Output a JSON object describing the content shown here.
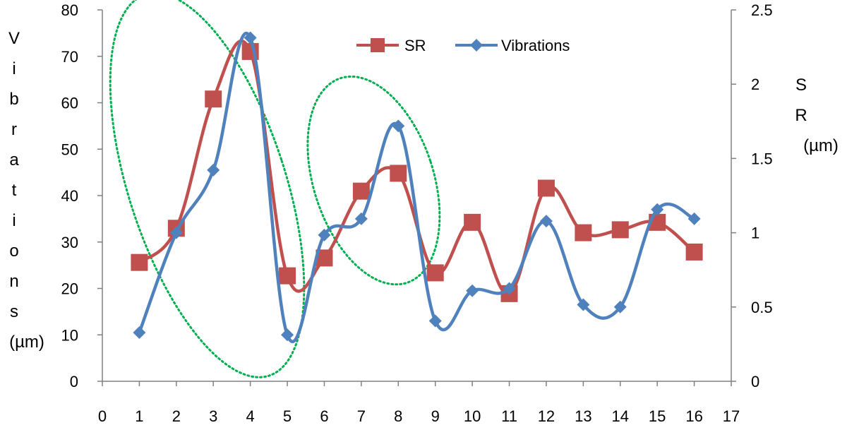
{
  "chart_data": {
    "type": "line",
    "x": [
      1,
      2,
      3,
      4,
      5,
      6,
      7,
      8,
      9,
      10,
      11,
      12,
      13,
      14,
      15,
      16
    ],
    "xlim": [
      0,
      17
    ],
    "x_ticks": [
      "0",
      "1",
      "2",
      "3",
      "4",
      "5",
      "6",
      "7",
      "8",
      "9",
      "10",
      "11",
      "12",
      "13",
      "14",
      "15",
      "16",
      "17"
    ],
    "y_left": {
      "label": "Vibrations (µm)",
      "label_letters": [
        "V",
        "i",
        "b",
        "r",
        "a",
        "t",
        "i",
        "o",
        "n",
        "s",
        "(µm)"
      ],
      "ylim": [
        0,
        80
      ],
      "ticks": [
        "0",
        "10",
        "20",
        "30",
        "40",
        "50",
        "60",
        "70",
        "80"
      ]
    },
    "y_right": {
      "label": "SR (µm)",
      "label_lines": [
        "S",
        "R",
        "(µm)"
      ],
      "ylim": [
        0,
        2.5
      ],
      "ticks": [
        "0",
        "0.5",
        "1",
        "1.5",
        "2",
        "2.5"
      ]
    },
    "series": [
      {
        "name": "SR",
        "axis": "right",
        "marker": "square",
        "color": "#c0504d",
        "values": [
          0.8,
          1.03,
          1.9,
          2.22,
          0.71,
          0.83,
          1.28,
          1.4,
          0.73,
          1.07,
          0.59,
          1.3,
          1.0,
          1.02,
          1.07,
          0.87
        ]
      },
      {
        "name": "Vibrations",
        "axis": "left",
        "marker": "diamond",
        "color": "#4f81bd",
        "values": [
          10.5,
          32,
          45.5,
          74,
          10,
          31.5,
          35,
          55,
          13,
          19.5,
          20,
          34.5,
          16.5,
          16,
          37,
          35
        ]
      }
    ],
    "legend": {
      "position": "top-center"
    },
    "annotations": [
      {
        "type": "dotted-ellipse",
        "color": "#00b050",
        "around_x": [
          1,
          4
        ]
      },
      {
        "type": "dotted-ellipse",
        "color": "#00b050",
        "around_x": [
          6,
          8
        ]
      }
    ],
    "grid": false
  }
}
